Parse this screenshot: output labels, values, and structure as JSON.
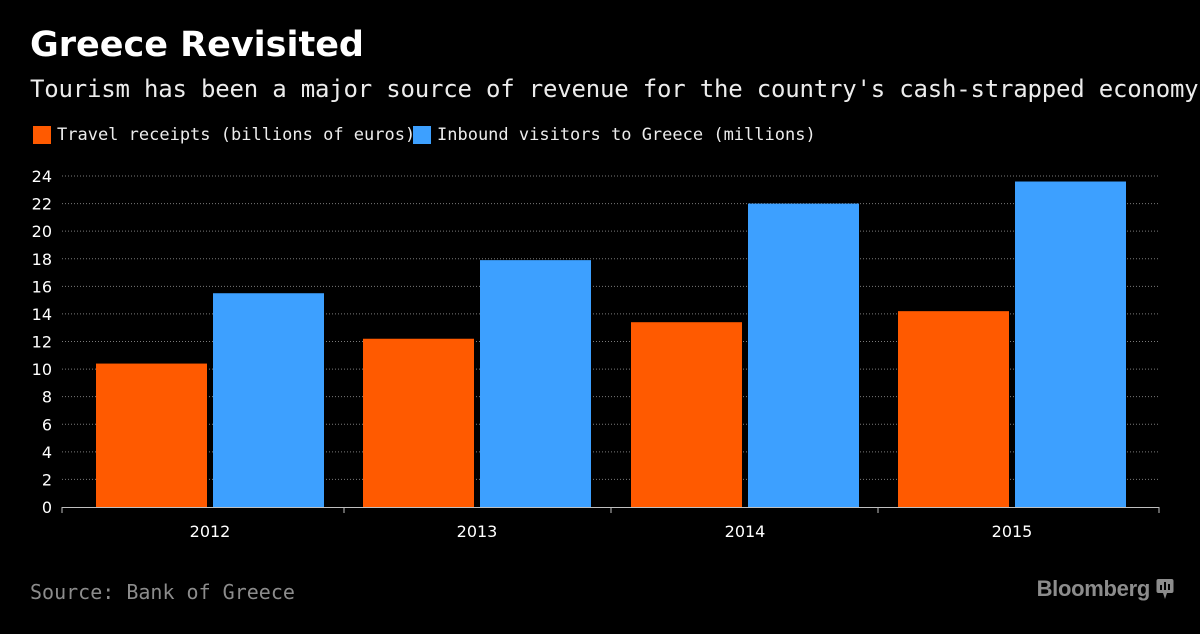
{
  "header": {
    "title": "Greece Revisited",
    "subtitle": "Tourism has been a major source of revenue for the country's cash-strapped economy"
  },
  "footer": {
    "source": "Source: Bank of Greece",
    "brand": "Bloomberg"
  },
  "colors": {
    "background": "#000000",
    "travel_receipts": "#ff5a00",
    "inbound_visitors": "#3da0ff",
    "gridline": "#7a7a7a",
    "axis_text": "#ffffff",
    "muted_text": "#8c8c8c"
  },
  "icons": {
    "brand": "bloomberg-terminal-icon"
  },
  "chart_data": {
    "type": "bar",
    "title": "Greece Revisited",
    "subtitle": "Tourism has been a major source of revenue for the country's cash-strapped economy",
    "xlabel": "",
    "ylabel": "",
    "categories": [
      "2012",
      "2013",
      "2014",
      "2015"
    ],
    "series": [
      {
        "name": "Travel receipts (billions of euros)",
        "values": [
          10.4,
          12.2,
          13.4,
          14.2
        ],
        "color": "#ff5a00"
      },
      {
        "name": "Inbound visitors to Greece (millions)",
        "values": [
          15.5,
          17.9,
          22.0,
          23.6
        ],
        "color": "#3da0ff"
      }
    ],
    "ylim": [
      0,
      24
    ],
    "yticks": [
      "0",
      "2",
      "4",
      "6",
      "8",
      "10",
      "12",
      "14",
      "16",
      "18",
      "20",
      "22",
      "24"
    ],
    "grid": true,
    "legend_position": "top-left"
  }
}
